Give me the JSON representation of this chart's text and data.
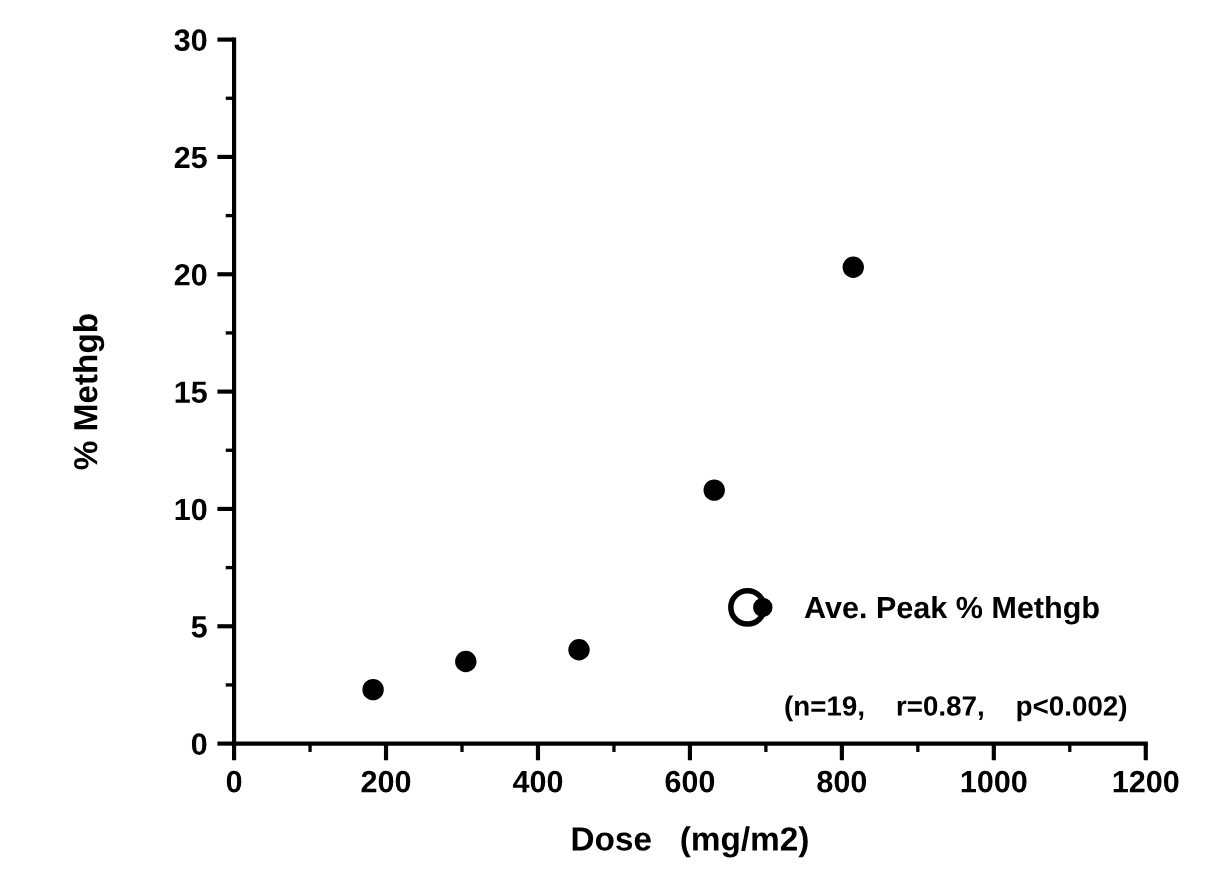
{
  "chart_data": {
    "type": "scatter",
    "xlabel": "Dose   (mg/m2)",
    "ylabel": "% Methgb",
    "x": [
      183,
      305,
      454,
      632,
      815
    ],
    "series": [
      {
        "name": "Ave. Peak % Methgb",
        "color": "#000000",
        "values": [
          2.3,
          3.5,
          4.0,
          10.8,
          20.3
        ]
      }
    ],
    "xlim": [
      0,
      1200
    ],
    "xticks": [
      0,
      200,
      400,
      600,
      800,
      1000,
      1200
    ],
    "ylim": [
      0,
      30
    ],
    "yticks": [
      0,
      5,
      10,
      15,
      20,
      25,
      30
    ],
    "marker": "circle",
    "grid": false,
    "legend": "bottom right",
    "annotations": [
      "(n=19,    r=0.87,    p<0.002)"
    ]
  }
}
